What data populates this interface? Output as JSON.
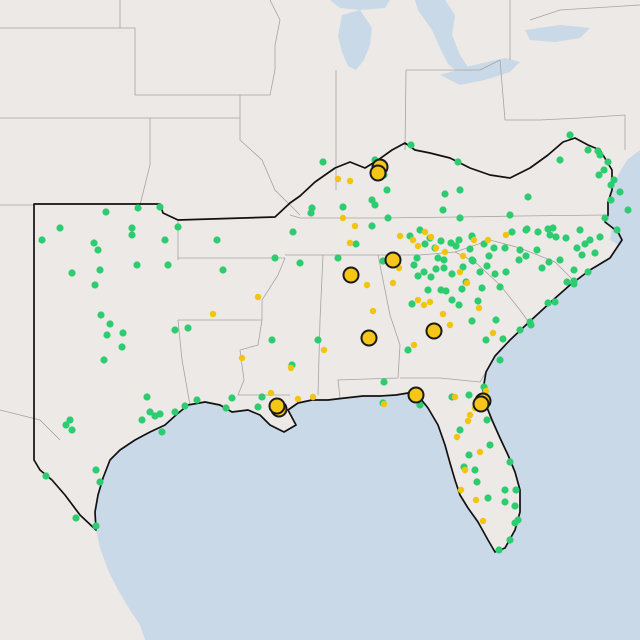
{
  "map": {
    "colors": {
      "water": "#c9d9e8",
      "land": "#ece9e6",
      "border": "#a7a3a0",
      "outline": "#111111",
      "green_site": "#2ecc71",
      "yellow_site": "#f1c40f",
      "major_site": "#f5c518"
    },
    "site_categories": [
      "green",
      "yellow",
      "yellow-major"
    ],
    "site_counts": {
      "green": 200,
      "yellow": 50,
      "yellow-major": 11
    }
  }
}
